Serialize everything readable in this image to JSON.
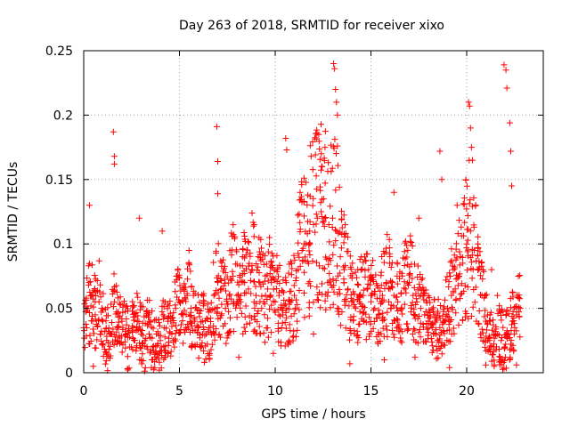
{
  "chart_data": {
    "type": "scatter",
    "title": "Day 263 of 2018, SRMTID for receiver xixo",
    "xlabel": "GPS time / hours",
    "ylabel": "SRMTID / TECUs",
    "xlim": [
      0,
      24
    ],
    "ylim": [
      0,
      0.25
    ],
    "xticks": [
      0,
      5,
      10,
      15,
      20
    ],
    "xtick_labels": [
      "0",
      "5",
      "10",
      "15",
      "20"
    ],
    "yticks": [
      0,
      0.05,
      0.1,
      0.15,
      0.2,
      0.25
    ],
    "ytick_labels": [
      "0",
      "0.05",
      "0.1",
      "0.15",
      "0.2",
      "0.25"
    ],
    "grid": true,
    "marker": "+",
    "color": "#ff0000",
    "series": [
      {
        "name": "SRMTID",
        "x": [
          0.0,
          0.2,
          0.4,
          0.6,
          0.8,
          1.0,
          1.2,
          1.4,
          1.6,
          1.8,
          2.0,
          2.2,
          2.4,
          2.6,
          2.8,
          3.0,
          3.2,
          3.4,
          3.6,
          3.8,
          4.0,
          4.2,
          4.4,
          4.6,
          4.8,
          5.0,
          5.2,
          5.4,
          5.6,
          5.8,
          6.0,
          6.2,
          6.4,
          6.6,
          6.8,
          7.0,
          7.2,
          7.4,
          7.6,
          7.8,
          8.0,
          8.2,
          8.4,
          8.6,
          8.8,
          9.0,
          9.2,
          9.4,
          9.6,
          9.8,
          10.0,
          10.2,
          10.4,
          10.6,
          10.8,
          11.0,
          11.2,
          11.4,
          11.6,
          11.8,
          12.0,
          12.2,
          12.4,
          12.6,
          12.8,
          13.0,
          13.2,
          13.4,
          13.6,
          13.8,
          14.0,
          14.2,
          14.4,
          14.6,
          14.8,
          15.0,
          15.2,
          15.4,
          15.6,
          15.8,
          16.0,
          16.2,
          16.4,
          16.6,
          16.8,
          17.0,
          17.2,
          17.4,
          17.6,
          17.8,
          18.0,
          18.2,
          18.4,
          18.6,
          18.8,
          19.0,
          19.2,
          19.4,
          19.6,
          19.8,
          20.0,
          20.2,
          20.4,
          20.6,
          20.8,
          21.0,
          21.2,
          21.4,
          21.6,
          21.8,
          22.0,
          22.2,
          22.4,
          22.6,
          22.8,
          1.55,
          1.6,
          1.6,
          6.95,
          7.0,
          7.0,
          10.55,
          10.6,
          12.45,
          12.6,
          13.05,
          13.1,
          13.15,
          13.2,
          13.25,
          13.25,
          18.6,
          18.7,
          20.1,
          20.15,
          20.2,
          20.25,
          20.3,
          21.95,
          22.05,
          22.1,
          22.25,
          22.3,
          22.35,
          0.3,
          2.9,
          4.1,
          5.5,
          8.9,
          9.7,
          11.3,
          14.5,
          16.2,
          17.5,
          19.5,
          21.3,
          21.6,
          0.5,
          3.6,
          6.3,
          8.1,
          9.9,
          12.0,
          13.9,
          15.7,
          17.3,
          19.1,
          21.0,
          22.6
        ],
        "y": [
          0.035,
          0.05,
          0.06,
          0.045,
          0.055,
          0.04,
          0.025,
          0.03,
          0.055,
          0.035,
          0.04,
          0.03,
          0.02,
          0.035,
          0.04,
          0.03,
          0.025,
          0.045,
          0.02,
          0.03,
          0.025,
          0.035,
          0.04,
          0.03,
          0.05,
          0.055,
          0.045,
          0.06,
          0.05,
          0.04,
          0.035,
          0.04,
          0.03,
          0.035,
          0.06,
          0.07,
          0.065,
          0.05,
          0.06,
          0.075,
          0.06,
          0.055,
          0.07,
          0.065,
          0.08,
          0.06,
          0.07,
          0.055,
          0.065,
          0.07,
          0.055,
          0.06,
          0.045,
          0.05,
          0.055,
          0.06,
          0.08,
          0.095,
          0.1,
          0.11,
          0.115,
          0.12,
          0.125,
          0.12,
          0.115,
          0.12,
          0.11,
          0.09,
          0.08,
          0.065,
          0.055,
          0.05,
          0.055,
          0.06,
          0.065,
          0.06,
          0.05,
          0.045,
          0.06,
          0.07,
          0.065,
          0.06,
          0.055,
          0.05,
          0.065,
          0.07,
          0.06,
          0.055,
          0.05,
          0.045,
          0.04,
          0.035,
          0.03,
          0.035,
          0.04,
          0.05,
          0.06,
          0.065,
          0.075,
          0.085,
          0.1,
          0.11,
          0.095,
          0.08,
          0.06,
          0.04,
          0.025,
          0.02,
          0.03,
          0.025,
          0.02,
          0.03,
          0.04,
          0.045,
          0.05,
          0.187,
          0.168,
          0.162,
          0.191,
          0.164,
          0.139,
          0.182,
          0.173,
          0.16,
          0.175,
          0.24,
          0.236,
          0.22,
          0.21,
          0.2,
          0.176,
          0.172,
          0.15,
          0.21,
          0.207,
          0.19,
          0.175,
          0.165,
          0.239,
          0.235,
          0.221,
          0.194,
          0.172,
          0.145,
          0.13,
          0.12,
          0.11,
          0.095,
          0.115,
          0.105,
          0.14,
          0.09,
          0.14,
          0.12,
          0.13,
          0.08,
          0.06,
          0.005,
          0.01,
          0.008,
          0.012,
          0.015,
          0.03,
          0.007,
          0.01,
          0.012,
          0.004,
          0.006,
          0.006
        ]
      }
    ]
  }
}
